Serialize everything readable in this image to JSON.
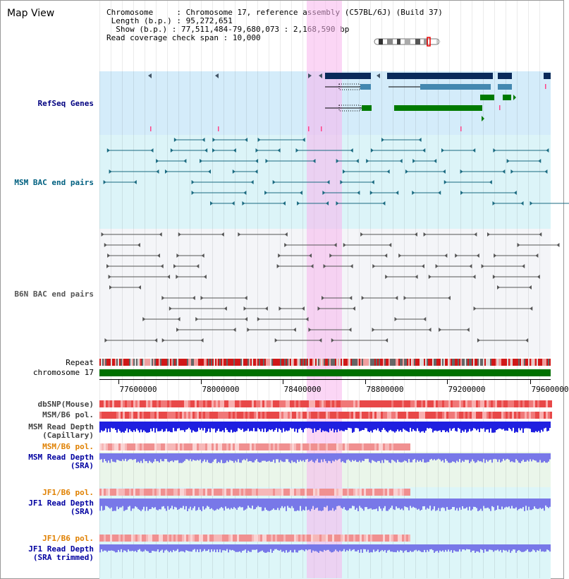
{
  "title": "Map View",
  "info": {
    "chromosome_label": "Chromosome",
    "chromosome_value": "Chromosome 17, reference assembly (C57BL/6J) (Build 37)",
    "length_label": "Length (b.p.)",
    "length_value": "95,272,651",
    "show_label": "Show (b.p.)",
    "show_value": "77,511,484-79,680,073 : 2,168,590 bp",
    "coverage_label": "Read coverage check span",
    "coverage_value": "10,000"
  },
  "tracks": {
    "refseq": "RefSeq Genes",
    "msm_bac": "MSM BAC end pairs",
    "b6n_bac": "B6N BAC end pairs",
    "repeat": "Repeat",
    "chromosome": "chromosome 17",
    "dbsnp": "dbSNP(Mouse)",
    "msm_b6_pol_1": "MSM/B6 pol.",
    "msm_read_depth_cap_1": "MSM Read Depth",
    "msm_read_depth_cap_2": "(Capillary)",
    "msm_b6_pol_2": "MSM/B6 pol.",
    "msm_read_depth_sra_1": "MSM Read Depth",
    "msm_read_depth_sra_2": "(SRA)",
    "jf1_b6_pol_1": "JF1/B6 pol.",
    "jf1_read_depth_sra_1": "JF1 Read Depth",
    "jf1_read_depth_sra_2": "(SRA)",
    "jf1_b6_pol_2": "JF1/B6 pol.",
    "jf1_read_depth_trim_1": "JF1 Read Depth",
    "jf1_read_depth_trim_2": "(SRA trimmed)"
  },
  "axis": {
    "ticks": [
      "77600000",
      "78000000",
      "78400000",
      "78800000",
      "79200000",
      "79600000"
    ]
  },
  "colors": {
    "refseq_label": "#000080",
    "msm_label": "#006080",
    "b6n_label": "#555555",
    "orange_label": "#e08000",
    "blue_label": "#0000a0",
    "highlight": "#f8b4ec"
  }
}
